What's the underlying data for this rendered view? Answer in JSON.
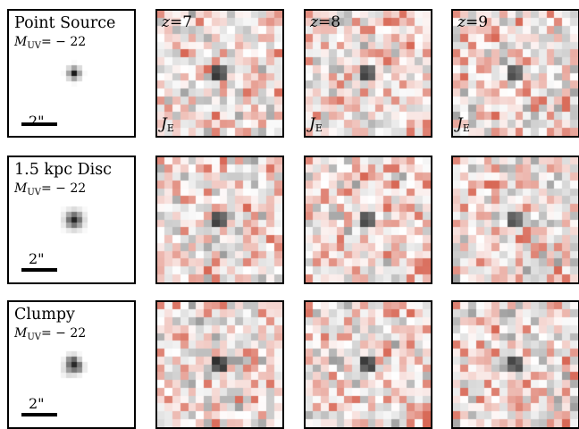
{
  "rows": [
    {
      "title": "Point Source",
      "mag_symbol": "M",
      "mag_sub": "UV",
      "mag_value": "= − 22",
      "scale_label": "2\"",
      "source": "point"
    },
    {
      "title": "1.5 kpc Disc",
      "mag_symbol": "M",
      "mag_sub": "UV",
      "mag_value": "= − 22",
      "scale_label": "2\"",
      "source": "disc"
    },
    {
      "title": "Clumpy",
      "mag_symbol": "M",
      "mag_sub": "UV",
      "mag_value": "= − 22",
      "scale_label": "2\"",
      "source": "clumpy"
    }
  ],
  "columns": [
    {
      "z_symbol": "z",
      "z_value": "=7",
      "filter_symbol": "J",
      "filter_sub": "E"
    },
    {
      "z_symbol": "z",
      "z_value": "=8",
      "filter_symbol": "J",
      "filter_sub": "E"
    },
    {
      "z_symbol": "z",
      "z_value": "=9",
      "filter_symbol": "J",
      "filter_sub": "E"
    }
  ],
  "colors": {
    "border": "#000000",
    "noise_positive": "#d6604d",
    "noise_negative": "#8c8c8c",
    "source": "#1a1a1a"
  }
}
